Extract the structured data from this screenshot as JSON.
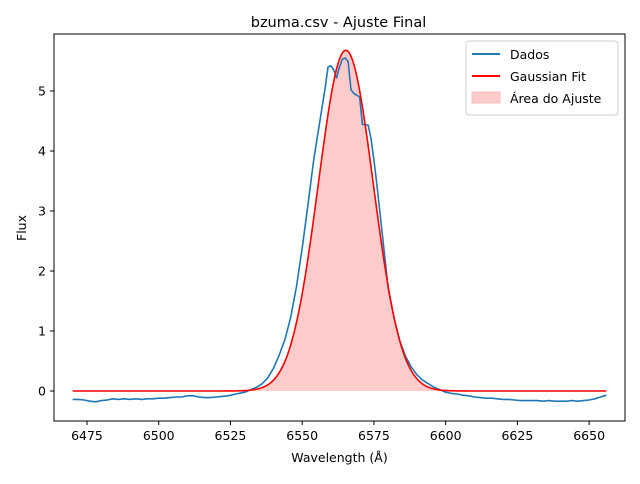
{
  "chart_data": {
    "type": "line",
    "title": "bzuma.csv - Ajuste Final",
    "xlabel": "Wavelength (Å)",
    "ylabel": "Flux",
    "xlim": [
      6463.5,
      6662.5
    ],
    "ylim": [
      -0.5,
      5.95
    ],
    "xticks": [
      6475,
      6500,
      6525,
      6550,
      6575,
      6600,
      6625,
      6650
    ],
    "yticks": [
      0,
      1,
      2,
      3,
      4,
      5
    ],
    "grid": false,
    "legend_position": "top-right",
    "legend": [
      {
        "label": "Dados",
        "kind": "line",
        "color": "#1f77b4"
      },
      {
        "label": "Gaussian Fit",
        "kind": "line",
        "color": "#ff0000"
      },
      {
        "label": "Área do Ajuste",
        "kind": "patch",
        "color": "#ffcccc"
      }
    ],
    "series": [
      {
        "name": "Dados",
        "color": "#1f77b4",
        "x": [
          6470,
          6472,
          6474,
          6476,
          6478,
          6480,
          6482,
          6484,
          6486,
          6488,
          6490,
          6492,
          6494,
          6496,
          6498,
          6500,
          6502,
          6504,
          6506,
          6508,
          6510,
          6512,
          6514,
          6516,
          6518,
          6520,
          6522,
          6524,
          6526,
          6528,
          6530,
          6532,
          6534,
          6536,
          6538,
          6540,
          6542,
          6544,
          6546,
          6548,
          6550,
          6552,
          6554,
          6556,
          6558,
          6559,
          6560,
          6561,
          6562,
          6563,
          6564,
          6565,
          6566,
          6567,
          6568,
          6569,
          6570,
          6571,
          6572,
          6573,
          6574,
          6575,
          6576,
          6578,
          6580,
          6582,
          6584,
          6586,
          6588,
          6590,
          6592,
          6594,
          6596,
          6598,
          6600,
          6602,
          6604,
          6606,
          6608,
          6610,
          6612,
          6614,
          6616,
          6618,
          6620,
          6622,
          6624,
          6626,
          6628,
          6630,
          6632,
          6634,
          6636,
          6638,
          6640,
          6642,
          6644,
          6646,
          6648,
          6650,
          6652,
          6654,
          6656
        ],
        "y": [
          -0.14,
          -0.14,
          -0.15,
          -0.17,
          -0.18,
          -0.16,
          -0.15,
          -0.13,
          -0.14,
          -0.13,
          -0.14,
          -0.13,
          -0.14,
          -0.13,
          -0.13,
          -0.12,
          -0.12,
          -0.11,
          -0.1,
          -0.1,
          -0.08,
          -0.08,
          -0.1,
          -0.11,
          -0.11,
          -0.1,
          -0.09,
          -0.08,
          -0.06,
          -0.04,
          -0.02,
          0.02,
          0.06,
          0.12,
          0.22,
          0.38,
          0.6,
          0.86,
          1.23,
          1.74,
          2.38,
          3.1,
          3.85,
          4.45,
          5.05,
          5.4,
          5.42,
          5.35,
          5.22,
          5.4,
          5.53,
          5.55,
          5.49,
          5.02,
          4.96,
          4.93,
          4.9,
          4.44,
          4.44,
          4.43,
          4.2,
          3.85,
          3.45,
          2.58,
          1.7,
          1.22,
          0.84,
          0.58,
          0.4,
          0.27,
          0.18,
          0.12,
          0.06,
          0.02,
          -0.02,
          -0.04,
          -0.05,
          -0.07,
          -0.08,
          -0.1,
          -0.11,
          -0.12,
          -0.12,
          -0.13,
          -0.14,
          -0.14,
          -0.15,
          -0.16,
          -0.16,
          -0.16,
          -0.16,
          -0.17,
          -0.16,
          -0.17,
          -0.17,
          -0.17,
          -0.16,
          -0.17,
          -0.16,
          -0.15,
          -0.13,
          -0.1,
          -0.07
        ]
      },
      {
        "name": "Gaussian Fit",
        "color": "#ff0000",
        "fill_label": "Área do Ajuste",
        "fill_color": "#ffcccc",
        "model": {
          "amplitude": 5.68,
          "center": 6565.2,
          "sigma": 9.6,
          "baseline": 0
        },
        "x_range": [
          6470,
          6656
        ]
      }
    ]
  }
}
